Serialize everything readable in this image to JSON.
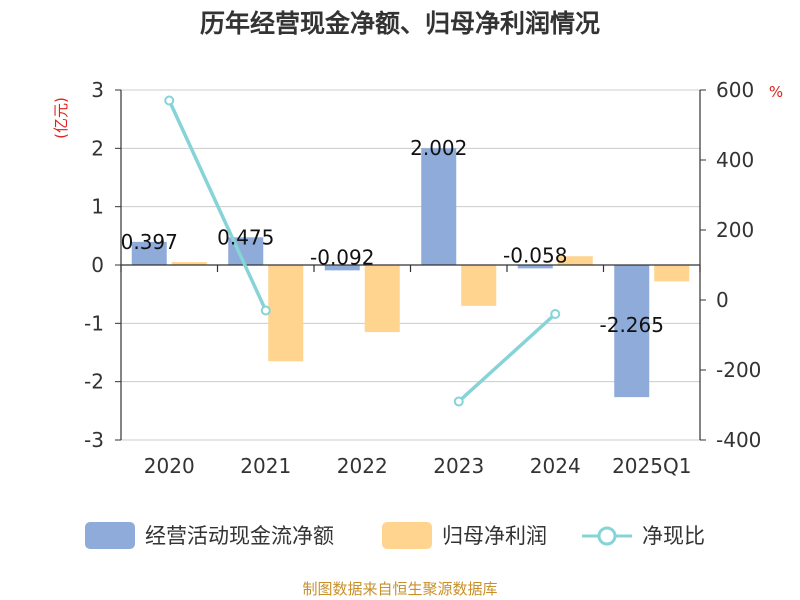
{
  "colors": {
    "bar_ocf": "#8eabd9",
    "bar_profit": "#ffd48f",
    "line_ratio": "#86d3d8",
    "unit": "#e0201a",
    "source": "#c8902a"
  },
  "source_text": "制图数据来自恒生聚源数据库",
  "chart_data": {
    "type": "bar",
    "title": "历年经营现金净额、归母净利润情况",
    "categories": [
      "2020",
      "2021",
      "2022",
      "2023",
      "2024",
      "2025Q1"
    ],
    "y_left": {
      "unit_label": "(亿元)",
      "range": [
        -3,
        3
      ],
      "ticks": [
        "3",
        "2",
        "1",
        "0",
        "-1",
        "-2",
        "-3"
      ],
      "grid": true
    },
    "y_right": {
      "unit_label": "%",
      "range": [
        -400,
        600
      ],
      "ticks": [
        "600",
        "400",
        "200",
        "0",
        "-200",
        "-400"
      ]
    },
    "series": [
      {
        "name": "经营活动现金流净额",
        "type": "bar",
        "axis": "left",
        "values": [
          0.397,
          0.475,
          -0.092,
          2.002,
          -0.058,
          -2.265
        ],
        "labels": [
          "0.397",
          "0.475",
          "-0.092",
          "2.002",
          "-0.058",
          "-2.265"
        ]
      },
      {
        "name": "归母净利润",
        "type": "bar",
        "axis": "left",
        "values": [
          0.05,
          -1.65,
          -1.15,
          -0.7,
          0.15,
          -0.28
        ]
      },
      {
        "name": "净现比",
        "type": "line",
        "axis": "right",
        "values": [
          570,
          -30,
          null,
          -290,
          -40,
          null
        ]
      }
    ],
    "legend_position": "bottom"
  }
}
